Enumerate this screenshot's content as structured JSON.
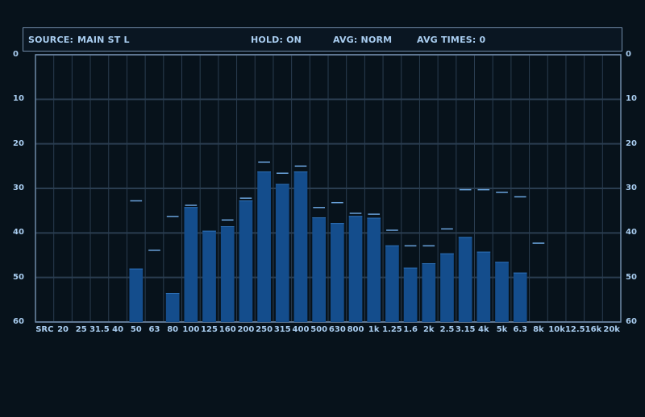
{
  "status": {
    "source_label": "SOURCE:",
    "source_value": "MAIN ST L",
    "hold": "HOLD: ON",
    "avg": "AVG: NORM",
    "avg_times": "AVG TIMES: 0"
  },
  "colors": {
    "background": "#07121b",
    "grid": "#2a3d50",
    "frame": "#6f8aa8",
    "bar": "#144d8c",
    "peak_hold": "#6aa3dc",
    "text": "#a9cdf0"
  },
  "chart_data": {
    "type": "bar",
    "y_axis": {
      "range": [
        0,
        60
      ],
      "inverted": true,
      "ticks": [
        "0",
        "10",
        "20",
        "30",
        "40",
        "50",
        "60"
      ]
    },
    "categories": [
      "SRC",
      "20",
      "25",
      "31.5",
      "40",
      "50",
      "63",
      "80",
      "100",
      "125",
      "160",
      "200",
      "250",
      "315",
      "400",
      "500",
      "630",
      "800",
      "1k",
      "1.25",
      "1.6",
      "2k",
      "2.5",
      "3.15",
      "4k",
      "5k",
      "6.3",
      "8k",
      "10k",
      "12.5",
      "16k",
      "20k"
    ],
    "values": [
      null,
      null,
      null,
      null,
      null,
      48,
      null,
      53.5,
      34.2,
      39.5,
      38.5,
      32.7,
      26.2,
      29,
      26.2,
      36.5,
      37.8,
      36.2,
      36.6,
      42.8,
      47.8,
      46.8,
      44.6,
      40.9,
      44.2,
      46.5,
      48.9,
      null,
      null,
      null,
      null,
      null
    ],
    "peak_hold": [
      null,
      null,
      null,
      null,
      null,
      32.8,
      43.9,
      36.3,
      33.8,
      null,
      37.1,
      32.2,
      24.1,
      26.6,
      25,
      34.3,
      33.2,
      35.6,
      35.8,
      39.4,
      42.9,
      42.9,
      39.1,
      30.3,
      30.3,
      30.9,
      31.9,
      42.3,
      null,
      null,
      null,
      null
    ]
  }
}
